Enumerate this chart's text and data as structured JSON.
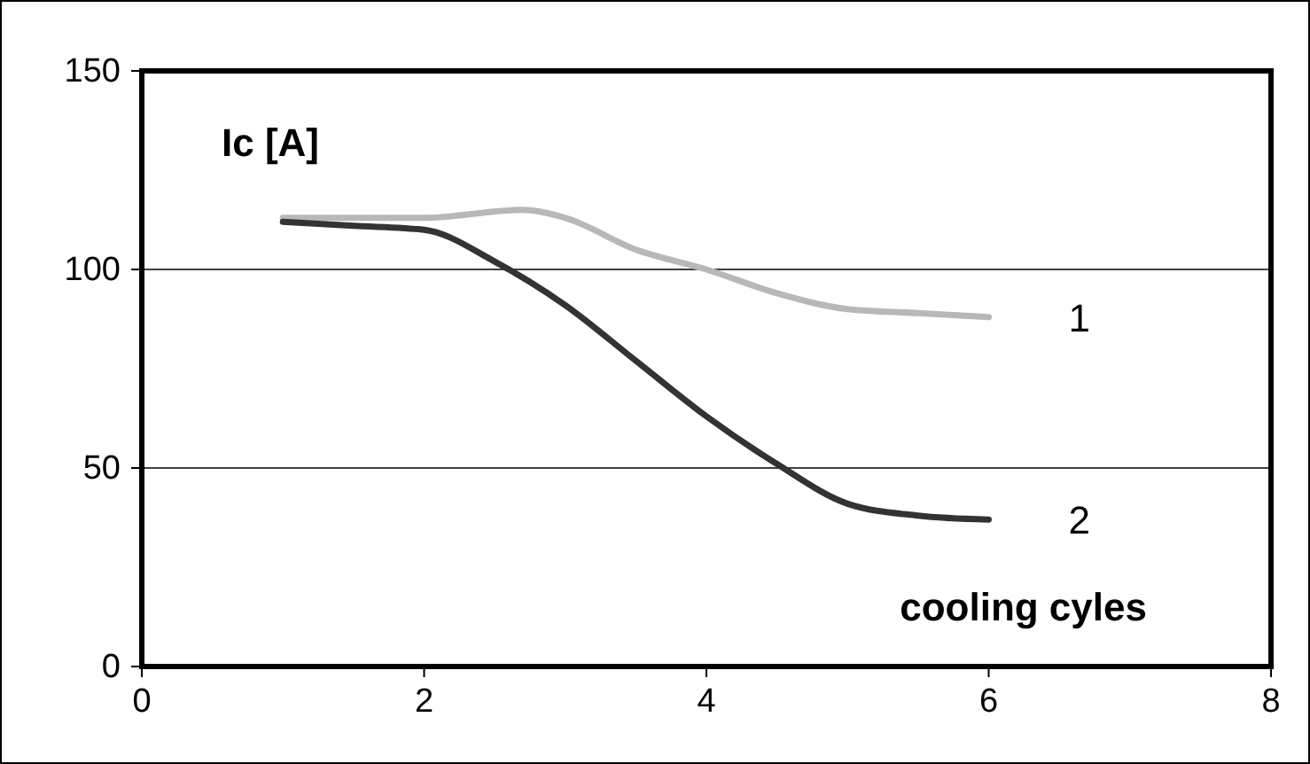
{
  "chart_data": {
    "type": "line",
    "xlabel": "cooling cyles",
    "ylabel": "Ic [A]",
    "xlim": [
      0,
      8
    ],
    "xticks": [
      0,
      2,
      4,
      6,
      8
    ],
    "ylim": [
      0,
      150
    ],
    "yticks": [
      0,
      50,
      100,
      150
    ],
    "grid": "y",
    "marker": "none",
    "line_style": "solid",
    "series": [
      {
        "name": "1",
        "color": "#b8b8b8",
        "x": [
          1,
          2,
          2.7,
          3,
          3.5,
          4,
          4.5,
          5,
          5.5,
          6
        ],
        "values": [
          113,
          113,
          115,
          113,
          105,
          100,
          94,
          90,
          89,
          88
        ]
      },
      {
        "name": "2",
        "color": "#333333",
        "x": [
          1,
          1.5,
          2,
          2.5,
          3,
          3.5,
          4,
          4.5,
          5,
          5.5,
          6
        ],
        "values": [
          112,
          111,
          110,
          102,
          91,
          77,
          63,
          51,
          41,
          38,
          37
        ]
      }
    ]
  }
}
